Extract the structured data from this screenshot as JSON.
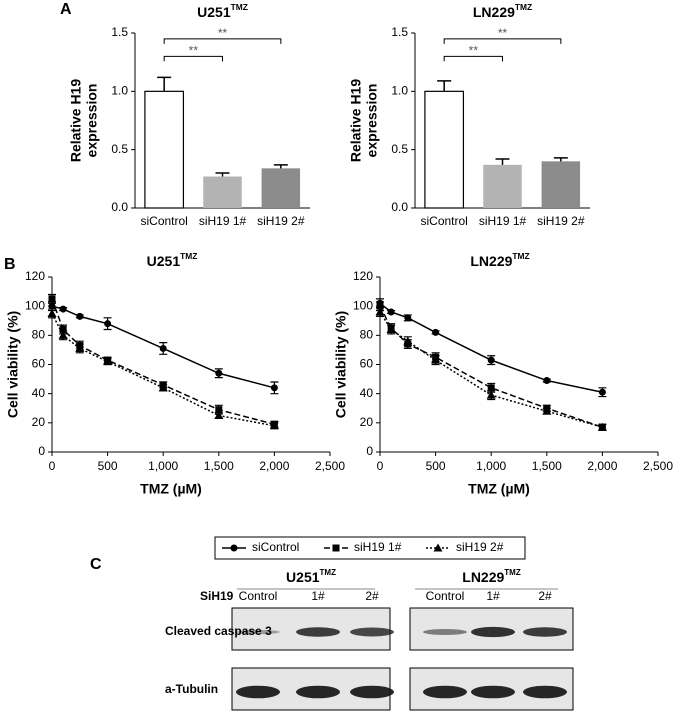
{
  "panel_labels": [
    "A",
    "B"
  ],
  "chart_data": [
    {
      "type": "bar",
      "title": "U251",
      "title_sup": "TMZ",
      "ylabel_lines": [
        "Relative H19",
        "expression"
      ],
      "categories": [
        "siControl",
        "siH19 1#",
        "siH19 2#"
      ],
      "values": [
        1.0,
        0.27,
        0.34
      ],
      "errors": [
        0.12,
        0.03,
        0.03
      ],
      "colors": [
        "#ffffff",
        "#b3b3b3",
        "#8c8c8c"
      ],
      "ylim": [
        0,
        1.5
      ],
      "yticks": [
        {
          "value": 0,
          "label": "0.0"
        },
        0.5,
        {
          "value": 1,
          "label": "1.0"
        },
        1.5
      ],
      "annotations": [
        {
          "text": "**",
          "from": 0,
          "to": 1,
          "y": 1.3
        },
        {
          "text": "**",
          "from": 0,
          "to": 2,
          "y": 1.45
        }
      ]
    },
    {
      "type": "bar",
      "title": "LN229",
      "title_sup": "TMZ",
      "ylabel_lines": [
        "Relative H19",
        "expression"
      ],
      "categories": [
        "siControl",
        "siH19 1#",
        "siH19 2#"
      ],
      "values": [
        1.0,
        0.37,
        0.4
      ],
      "errors": [
        0.09,
        0.05,
        0.03
      ],
      "colors": [
        "#ffffff",
        "#b3b3b3",
        "#8c8c8c"
      ],
      "ylim": [
        0,
        1.5
      ],
      "yticks": [
        {
          "value": 0,
          "label": "0.0"
        },
        0.5,
        {
          "value": 1,
          "label": "1.0"
        },
        1.5
      ],
      "annotations": [
        {
          "text": "**",
          "from": 0,
          "to": 1,
          "y": 1.3
        },
        {
          "text": "**",
          "from": 0,
          "to": 2,
          "y": 1.45
        }
      ]
    },
    {
      "type": "line",
      "title": "U251",
      "title_sup": "TMZ",
      "xlabel": "TMZ (µM)",
      "ylabel": "Cell viability (%)",
      "x": [
        0,
        100,
        250,
        500,
        1000,
        1500,
        2000
      ],
      "xlim": [
        0,
        2500
      ],
      "xticks": [
        0,
        500,
        {
          "value": 1000,
          "label": "1,000"
        },
        {
          "value": 1500,
          "label": "1,500"
        },
        {
          "value": 2000,
          "label": "2,000"
        },
        {
          "value": 2500,
          "label": "2,500"
        }
      ],
      "ylim": [
        0,
        120
      ],
      "yticks": [
        0,
        20,
        40,
        60,
        80,
        100,
        120
      ],
      "legend": "bottom",
      "series": [
        {
          "name": "siControl",
          "color": "#000000",
          "style": "solid",
          "marker": "circle",
          "values": [
            100,
            98,
            93,
            88,
            71,
            54,
            44
          ],
          "errors": [
            3,
            1,
            1,
            4,
            4,
            3,
            4
          ]
        },
        {
          "name": "siH19 1#",
          "color": "#000000",
          "style": "dashed",
          "marker": "square",
          "values": [
            105,
            84,
            73,
            63,
            46,
            29,
            19
          ],
          "errors": [
            3,
            3,
            3,
            2,
            2,
            3,
            2
          ]
        },
        {
          "name": "siH19 2#",
          "color": "#000000",
          "style": "dotted",
          "marker": "triangle",
          "values": [
            95,
            80,
            71,
            62,
            44,
            25,
            18
          ],
          "errors": [
            3,
            3,
            3,
            2,
            2,
            2,
            2
          ]
        }
      ]
    },
    {
      "type": "line",
      "title": "LN229",
      "title_sup": "TMZ",
      "xlabel": "TMZ (µM)",
      "ylabel": "Cell viability (%)",
      "x": [
        0,
        100,
        250,
        500,
        1000,
        1500,
        2000
      ],
      "xlim": [
        0,
        2500
      ],
      "xticks": [
        0,
        500,
        {
          "value": 1000,
          "label": "1,000"
        },
        {
          "value": 1500,
          "label": "1,500"
        },
        {
          "value": 2000,
          "label": "2,000"
        },
        {
          "value": 2500,
          "label": "2,500"
        }
      ],
      "ylim": [
        0,
        120
      ],
      "yticks": [
        0,
        20,
        40,
        60,
        80,
        100,
        120
      ],
      "series": [
        {
          "name": "siControl",
          "color": "#000000",
          "style": "solid",
          "marker": "circle",
          "values": [
            102,
            96,
            92,
            82,
            63,
            49,
            41
          ],
          "errors": [
            3,
            1,
            2,
            1,
            3,
            1,
            3
          ]
        },
        {
          "name": "siH19 1#",
          "color": "#000000",
          "style": "dashed",
          "marker": "square",
          "values": [
            100,
            85,
            74,
            65,
            44,
            30,
            17
          ],
          "errors": [
            3,
            3,
            3,
            3,
            3,
            2,
            2
          ]
        },
        {
          "name": "siH19 2#",
          "color": "#000000",
          "style": "dotted",
          "marker": "triangle",
          "values": [
            96,
            84,
            76,
            63,
            39,
            28,
            17
          ],
          "errors": [
            3,
            3,
            3,
            3,
            3,
            2,
            2
          ]
        }
      ]
    }
  ],
  "blot": {
    "label": "C",
    "row_header": "SiH19",
    "rows": [
      "Cleaved caspase 3",
      "a-Tubulin"
    ],
    "groups": [
      {
        "title": "U251",
        "title_sup": "TMZ",
        "lanes": [
          "Control",
          "1#",
          "2#"
        ]
      },
      {
        "title": "LN229",
        "title_sup": "TMZ",
        "lanes": [
          "Control",
          "1#",
          "2#"
        ]
      }
    ]
  }
}
